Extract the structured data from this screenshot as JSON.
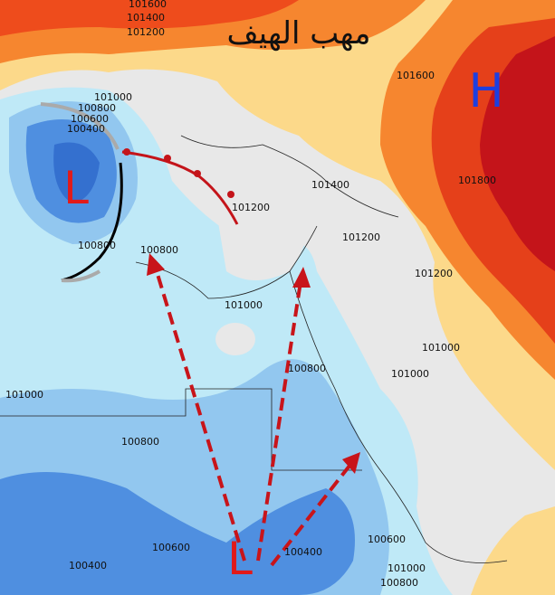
{
  "title": "مهب الهيف",
  "pressure_centers": [
    {
      "label": "H"
    },
    {
      "label": "L"
    },
    {
      "label": "L"
    }
  ],
  "isobar_labels": [
    "101600",
    "101400",
    "101200",
    "101000",
    "100800",
    "100600",
    "100400",
    "100800",
    "100800",
    "101000",
    "101200",
    "101400",
    "101600",
    "101800",
    "101200",
    "101200",
    "101000",
    "101000",
    "100800",
    "101000",
    "100800",
    "100600",
    "100600",
    "100400",
    "100400",
    "101000",
    "100800"
  ]
}
